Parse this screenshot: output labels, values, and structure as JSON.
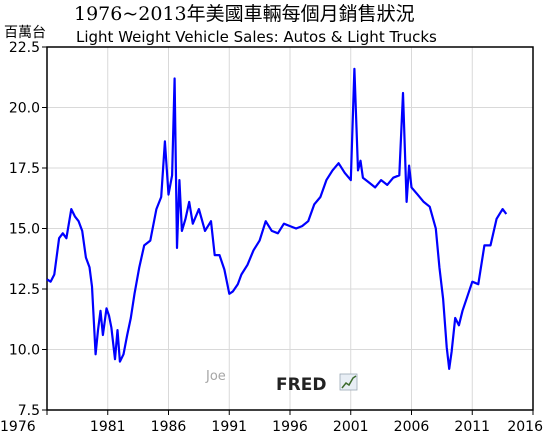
{
  "chart_data": {
    "type": "line",
    "title": "1976~2013年美國車輛每個月銷售狀況",
    "subtitle": "Light Weight Vehicle Sales: Autos & Light Trucks",
    "ylabel": "百萬台",
    "xlabel": "",
    "xlim": [
      1976,
      2016
    ],
    "ylim": [
      7.5,
      22.5
    ],
    "x_ticks": [
      "1976",
      "1981",
      "1986",
      "1991",
      "1996",
      "2001",
      "2006",
      "2011",
      "2016"
    ],
    "y_ticks": [
      "7.5",
      "10.0",
      "12.5",
      "15.0",
      "17.5",
      "20.0",
      "22.5"
    ],
    "grid": true,
    "line_color": "#0000ff",
    "series": [
      {
        "x": [
          1976.0,
          1976.3,
          1976.6,
          1977.0,
          1977.3,
          1977.6,
          1978.0,
          1978.3,
          1978.6,
          1978.9,
          1979.2,
          1979.5,
          1979.7,
          1980.0,
          1980.2,
          1980.4,
          1980.6,
          1980.9,
          1981.1,
          1981.3,
          1981.6,
          1981.8,
          1982.0,
          1982.3,
          1982.6,
          1982.9,
          1983.2,
          1983.6,
          1984.0,
          1984.5,
          1985.0,
          1985.4,
          1985.7,
          1986.0,
          1986.3,
          1986.5,
          1986.7,
          1986.9,
          1987.1,
          1987.4,
          1987.7,
          1988.0,
          1988.5,
          1989.0,
          1989.5,
          1989.8,
          1990.2,
          1990.6,
          1991.0,
          1991.3,
          1991.7,
          1992.0,
          1992.5,
          1993.0,
          1993.5,
          1994.0,
          1994.5,
          1995.0,
          1995.5,
          1996.0,
          1996.5,
          1997.0,
          1997.5,
          1998.0,
          1998.5,
          1999.0,
          1999.5,
          2000.0,
          2000.5,
          2001.0,
          2001.3,
          2001.6,
          2001.8,
          2002.0,
          2002.5,
          2003.0,
          2003.5,
          2004.0,
          2004.5,
          2005.0,
          2005.3,
          2005.6,
          2005.8,
          2006.0,
          2006.5,
          2007.0,
          2007.5,
          2008.0,
          2008.3,
          2008.6,
          2008.9,
          2009.1,
          2009.3,
          2009.6,
          2009.9,
          2010.2,
          2010.6,
          2011.0,
          2011.5,
          2012.0,
          2012.5,
          2013.0,
          2013.5,
          2013.8
        ],
        "y": [
          12.9,
          12.8,
          13.1,
          14.6,
          14.8,
          14.6,
          15.8,
          15.5,
          15.3,
          14.9,
          13.8,
          13.4,
          12.6,
          9.8,
          10.8,
          11.6,
          10.6,
          11.7,
          11.4,
          10.9,
          9.6,
          10.8,
          9.5,
          9.8,
          10.6,
          11.3,
          12.3,
          13.4,
          14.3,
          14.5,
          15.8,
          16.3,
          18.6,
          16.4,
          17.2,
          21.2,
          14.2,
          17.0,
          14.9,
          15.4,
          16.1,
          15.2,
          15.8,
          14.9,
          15.3,
          13.9,
          13.9,
          13.3,
          12.3,
          12.4,
          12.7,
          13.1,
          13.5,
          14.1,
          14.5,
          15.3,
          14.9,
          14.8,
          15.2,
          15.1,
          15.0,
          15.1,
          15.3,
          16.0,
          16.3,
          17.0,
          17.4,
          17.7,
          17.3,
          17.0,
          21.6,
          17.4,
          17.8,
          17.1,
          16.9,
          16.7,
          17.0,
          16.8,
          17.1,
          17.2,
          20.6,
          16.1,
          17.6,
          16.7,
          16.4,
          16.1,
          15.9,
          15.0,
          13.4,
          12.1,
          10.1,
          9.2,
          9.9,
          11.3,
          11.0,
          11.6,
          12.2,
          12.8,
          12.7,
          14.3,
          14.3,
          15.4,
          15.8,
          15.6
        ]
      }
    ]
  },
  "branding": {
    "signature": "Joe",
    "logo_text": "FRED"
  }
}
